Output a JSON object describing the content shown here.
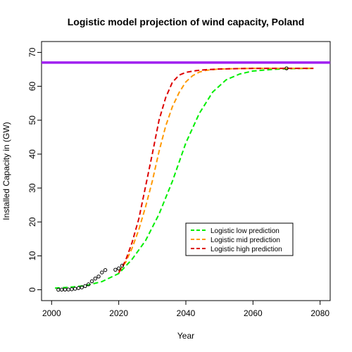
{
  "chart_data": {
    "type": "line",
    "title": "Logistic model projection of wind capacity, Poland",
    "xlabel": "Year",
    "ylabel": "Installed Capacity in (GW)",
    "xlim": [
      1997,
      2083
    ],
    "ylim": [
      -3.2,
      73.2
    ],
    "xticks": [
      2000,
      2020,
      2040,
      2060,
      2080
    ],
    "yticks": [
      0,
      10,
      20,
      30,
      40,
      50,
      60,
      70
    ],
    "grid": false,
    "legend_position": "bottom-right",
    "reference_line": {
      "y": 67,
      "color": "#a020f0"
    },
    "observed_points": {
      "x": [
        2002,
        2003,
        2004,
        2005,
        2006,
        2007,
        2008,
        2009,
        2010,
        2011,
        2012,
        2013,
        2014,
        2015,
        2016,
        2019,
        2020,
        2021,
        2070
      ],
      "y": [
        0.0,
        0.05,
        0.06,
        0.08,
        0.15,
        0.3,
        0.5,
        0.7,
        1.1,
        1.6,
        2.5,
        3.3,
        3.9,
        5.1,
        5.8,
        5.9,
        6.3,
        7.1,
        65.3
      ]
    },
    "series": [
      {
        "name": "Logistic low prediction",
        "color": "#00ee00",
        "x": [
          2001,
          2005,
          2010,
          2015,
          2020,
          2024,
          2028,
          2032,
          2036,
          2040,
          2044,
          2048,
          2052,
          2056,
          2060,
          2066,
          2072,
          2078
        ],
        "y": [
          0.5,
          0.7,
          1.2,
          2.4,
          4.8,
          9.0,
          14.5,
          22.3,
          32.0,
          43.3,
          52.0,
          58.3,
          61.9,
          63.6,
          64.5,
          65.0,
          65.2,
          65.3
        ]
      },
      {
        "name": "Logistic mid prediction",
        "color": "#ff9900",
        "x": [
          2020,
          2022,
          2024,
          2026,
          2028,
          2030,
          2032,
          2034,
          2036,
          2038,
          2040,
          2042,
          2044,
          2046,
          2050,
          2055,
          2060,
          2070,
          2078
        ],
        "y": [
          5.5,
          8.0,
          12.3,
          17.8,
          24.5,
          32.0,
          40.8,
          48.3,
          54.0,
          58.2,
          61.3,
          63.1,
          64.2,
          64.7,
          65.1,
          65.2,
          65.3,
          65.3,
          65.3
        ]
      },
      {
        "name": "Logistic high prediction",
        "color": "#dd0000",
        "x": [
          2020,
          2022,
          2024,
          2026,
          2028,
          2030,
          2032,
          2034,
          2036,
          2038,
          2040,
          2043,
          2046,
          2050,
          2055,
          2060,
          2070,
          2078
        ],
        "y": [
          5.0,
          8.5,
          14.0,
          21.0,
          30.5,
          40.0,
          50.0,
          56.7,
          61.2,
          63.3,
          64.1,
          64.6,
          64.9,
          65.1,
          65.2,
          65.3,
          65.3,
          65.3
        ]
      }
    ]
  }
}
